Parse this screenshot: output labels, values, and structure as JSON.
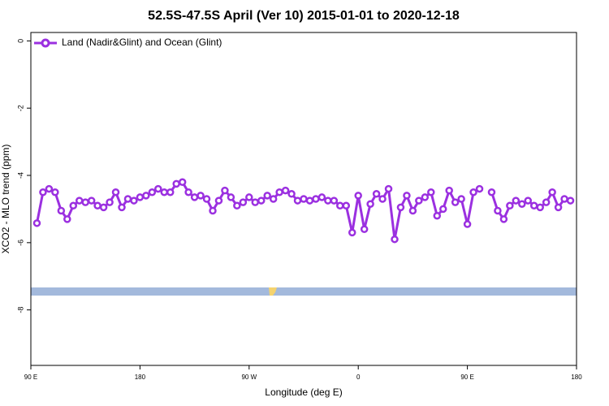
{
  "chart_data": {
    "type": "line",
    "title": "52.5S-47.5S April (Ver 10)   2015-01-01 to 2020-12-18",
    "x_label": "Longitude (deg E)",
    "y_label": "XCO2 - MLO trend (ppm)",
    "legend_position": "top-left",
    "x": [
      95,
      100,
      105,
      110,
      115,
      120,
      125,
      130,
      135,
      140,
      145,
      150,
      155,
      160,
      165,
      170,
      175,
      180,
      185,
      190,
      195,
      200,
      205,
      210,
      215,
      220,
      225,
      230,
      235,
      240,
      245,
      250,
      255,
      260,
      265,
      270,
      275,
      280,
      285,
      290,
      295,
      300,
      305,
      310,
      315,
      320,
      325,
      330,
      335,
      340,
      345,
      350,
      355,
      360,
      365,
      370,
      375,
      380,
      385,
      390,
      395,
      400,
      405,
      410,
      415,
      420,
      425,
      430,
      435,
      440,
      445,
      450,
      455,
      460,
      465,
      470,
      475,
      480,
      485,
      490,
      495,
      500,
      505,
      510,
      515,
      520,
      525,
      530,
      535
    ],
    "series": [
      {
        "name": "Land (Nadir&Glint) and Ocean (Glint)",
        "color": "#9b30e0",
        "values": [
          -5.42,
          -4.5,
          -4.4,
          -4.5,
          -5.05,
          -5.3,
          -4.9,
          -4.75,
          -4.8,
          -4.75,
          -4.9,
          -4.95,
          -4.8,
          -4.5,
          -4.95,
          -4.7,
          -4.75,
          -4.65,
          -4.6,
          -4.5,
          -4.4,
          -4.5,
          -4.5,
          -4.25,
          -4.2,
          -4.5,
          -4.65,
          -4.6,
          -4.7,
          -5.05,
          -4.75,
          -4.45,
          -4.65,
          -4.9,
          -4.8,
          -4.65,
          -4.8,
          -4.75,
          -4.6,
          -4.7,
          -4.5,
          -4.45,
          -4.55,
          -4.75,
          -4.7,
          -4.75,
          -4.7,
          -4.65,
          -4.75,
          -4.75,
          -4.9,
          -4.9,
          -5.7,
          -4.6,
          -5.6,
          -4.85,
          -4.55,
          -4.7,
          -4.4,
          -5.9,
          -4.95,
          -4.6,
          -5.05,
          -4.75,
          -4.65,
          -4.5,
          -5.2,
          -5.0,
          -4.45,
          -4.8,
          -4.7,
          -5.45,
          -4.5,
          -4.4,
          null,
          -4.5,
          -5.05,
          -5.3,
          -4.9,
          -4.75,
          -4.85,
          -4.75,
          -4.9,
          -4.95,
          -4.8,
          -4.5,
          -4.95,
          -4.7,
          -4.75
        ]
      }
    ],
    "xlim": [
      90,
      540
    ],
    "xticks": [
      {
        "value": 90,
        "label": "90 E"
      },
      {
        "value": 180,
        "label": "180"
      },
      {
        "value": 270,
        "label": "90 W"
      },
      {
        "value": 360,
        "label": "0"
      },
      {
        "value": 450,
        "label": "90 E"
      },
      {
        "value": 540,
        "label": "180"
      }
    ],
    "ylim": [
      -9.65,
      0.25
    ],
    "yticks": [
      0,
      -2,
      -4,
      -6,
      -8
    ]
  }
}
